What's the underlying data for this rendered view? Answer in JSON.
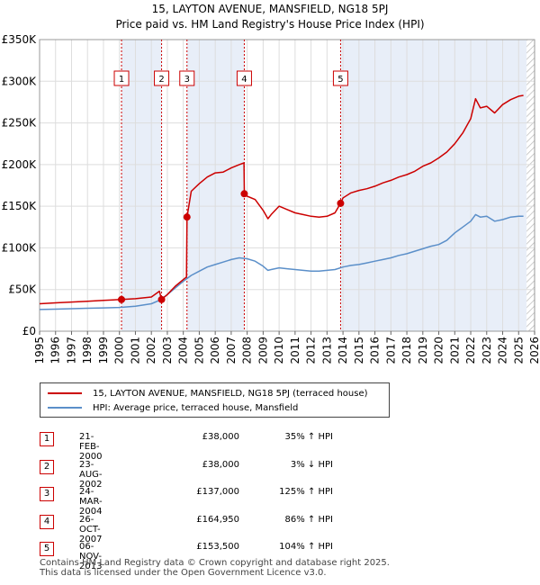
{
  "title": "15, LAYTON AVENUE, MANSFIELD, NG18 5PJ",
  "subtitle": "Price paid vs. HM Land Registry's House Price Index (HPI)",
  "chart_data": {
    "type": "line",
    "title": "15, LAYTON AVENUE, MANSFIELD, NG18 5PJ",
    "subtitle": "Price paid vs. HM Land Registry's House Price Index (HPI)",
    "xlabel": "",
    "ylabel": "",
    "xlim": [
      1995,
      2026
    ],
    "ylim": [
      0,
      350000
    ],
    "y_ticks": [
      0,
      50000,
      100000,
      150000,
      200000,
      250000,
      300000,
      350000
    ],
    "y_tick_labels": [
      "£0",
      "£50K",
      "£100K",
      "£150K",
      "£200K",
      "£250K",
      "£300K",
      "£350K"
    ],
    "x_ticks": [
      "1995",
      "1996",
      "1997",
      "1998",
      "1999",
      "2000",
      "2001",
      "2002",
      "2003",
      "2004",
      "2005",
      "2006",
      "2007",
      "2008",
      "2009",
      "2010",
      "2011",
      "2012",
      "2013",
      "2014",
      "2015",
      "2016",
      "2017",
      "2018",
      "2019",
      "2020",
      "2021",
      "2022",
      "2023",
      "2024",
      "2025",
      "2026"
    ],
    "grid": true,
    "colors": {
      "property": "#cc0000",
      "hpi": "#5b8fc9",
      "shade": "#e8eef8",
      "sale_line": "#cc0000"
    },
    "shaded_ranges": [
      [
        2000.13,
        2002.64
      ],
      [
        2004.23,
        2007.82
      ],
      [
        2013.85,
        2025.5
      ]
    ],
    "hatched_from": 2025.5,
    "series": [
      {
        "name": "15, LAYTON AVENUE, MANSFIELD, NG18 5PJ (terraced house)",
        "x": [
          1995.0,
          1996.0,
          1997.0,
          1998.0,
          1999.0,
          2000.13,
          2001.0,
          2002.0,
          2002.5,
          2002.64,
          2003.0,
          2003.5,
          2004.0,
          2004.2,
          2004.23,
          2004.5,
          2005.0,
          2005.5,
          2006.0,
          2006.5,
          2007.0,
          2007.5,
          2007.8,
          2007.82,
          2008.0,
          2008.5,
          2009.0,
          2009.3,
          2009.5,
          2010.0,
          2010.5,
          2011.0,
          2011.5,
          2012.0,
          2012.5,
          2013.0,
          2013.5,
          2013.85,
          2014.0,
          2014.5,
          2015.0,
          2015.5,
          2016.0,
          2016.5,
          2017.0,
          2017.5,
          2018.0,
          2018.5,
          2019.0,
          2019.5,
          2020.0,
          2020.5,
          2021.0,
          2021.5,
          2022.0,
          2022.3,
          2022.6,
          2023.0,
          2023.5,
          2024.0,
          2024.5,
          2025.0,
          2025.3
        ],
        "y": [
          33000,
          34000,
          35000,
          36000,
          37000,
          38000,
          39000,
          41000,
          48000,
          38000,
          44000,
          54000,
          62000,
          65000,
          137000,
          168000,
          177000,
          185000,
          190000,
          191000,
          196000,
          200000,
          202000,
          164950,
          162000,
          158000,
          145000,
          135000,
          140000,
          150000,
          146000,
          142000,
          140000,
          138000,
          137000,
          138000,
          142000,
          153500,
          160000,
          166000,
          169000,
          171000,
          174000,
          178000,
          181000,
          185000,
          188000,
          192000,
          198000,
          202000,
          208000,
          215000,
          225000,
          238000,
          255000,
          279000,
          268000,
          270000,
          262000,
          272000,
          278000,
          282000,
          283000
        ]
      },
      {
        "name": "HPI: Average price, terraced house, Mansfield",
        "x": [
          1995.0,
          1996.0,
          1997.0,
          1998.0,
          1999.0,
          2000.0,
          2001.0,
          2002.0,
          2002.5,
          2003.0,
          2003.5,
          2004.0,
          2004.5,
          2005.0,
          2005.5,
          2006.0,
          2006.5,
          2007.0,
          2007.5,
          2008.0,
          2008.5,
          2009.0,
          2009.3,
          2009.5,
          2010.0,
          2010.5,
          2011.0,
          2011.5,
          2012.0,
          2012.5,
          2013.0,
          2013.5,
          2014.0,
          2014.5,
          2015.0,
          2015.5,
          2016.0,
          2016.5,
          2017.0,
          2017.5,
          2018.0,
          2018.5,
          2019.0,
          2019.5,
          2020.0,
          2020.5,
          2021.0,
          2021.5,
          2022.0,
          2022.3,
          2022.6,
          2023.0,
          2023.5,
          2024.0,
          2024.5,
          2025.0,
          2025.3
        ],
        "y": [
          26000,
          26500,
          27000,
          27500,
          28000,
          28500,
          30000,
          33000,
          37000,
          44000,
          52000,
          60000,
          67000,
          72000,
          77000,
          80000,
          83000,
          86000,
          88000,
          87000,
          84000,
          78000,
          73000,
          74000,
          76000,
          75000,
          74000,
          73000,
          72000,
          72000,
          73000,
          74000,
          77000,
          79000,
          80000,
          82000,
          84000,
          86000,
          88000,
          91000,
          93000,
          96000,
          99000,
          102000,
          104000,
          109000,
          118000,
          125000,
          132000,
          140000,
          137000,
          138000,
          132000,
          134000,
          137000,
          138000,
          138000
        ]
      }
    ],
    "sale_markers": [
      {
        "label": "1",
        "x": 2000.13,
        "y": 38000
      },
      {
        "label": "2",
        "x": 2002.64,
        "y": 38000
      },
      {
        "label": "3",
        "x": 2004.23,
        "y": 137000
      },
      {
        "label": "4",
        "x": 2007.82,
        "y": 164950
      },
      {
        "label": "5",
        "x": 2013.85,
        "y": 153500
      }
    ]
  },
  "legend": {
    "property_label": "15, LAYTON AVENUE, MANSFIELD, NG18 5PJ (terraced house)",
    "hpi_label": "HPI: Average price, terraced house, Mansfield"
  },
  "sales": [
    {
      "num": "1",
      "date": "21-FEB-2000",
      "price": "£38,000",
      "change": "35% ↑ HPI"
    },
    {
      "num": "2",
      "date": "23-AUG-2002",
      "price": "£38,000",
      "change": "3% ↓ HPI"
    },
    {
      "num": "3",
      "date": "24-MAR-2004",
      "price": "£137,000",
      "change": "125% ↑ HPI"
    },
    {
      "num": "4",
      "date": "26-OCT-2007",
      "price": "£164,950",
      "change": "86% ↑ HPI"
    },
    {
      "num": "5",
      "date": "06-NOV-2013",
      "price": "£153,500",
      "change": "104% ↑ HPI"
    }
  ],
  "footer": {
    "line1": "Contains HM Land Registry data © Crown copyright and database right 2025.",
    "line2": "This data is licensed under the Open Government Licence v3.0."
  }
}
